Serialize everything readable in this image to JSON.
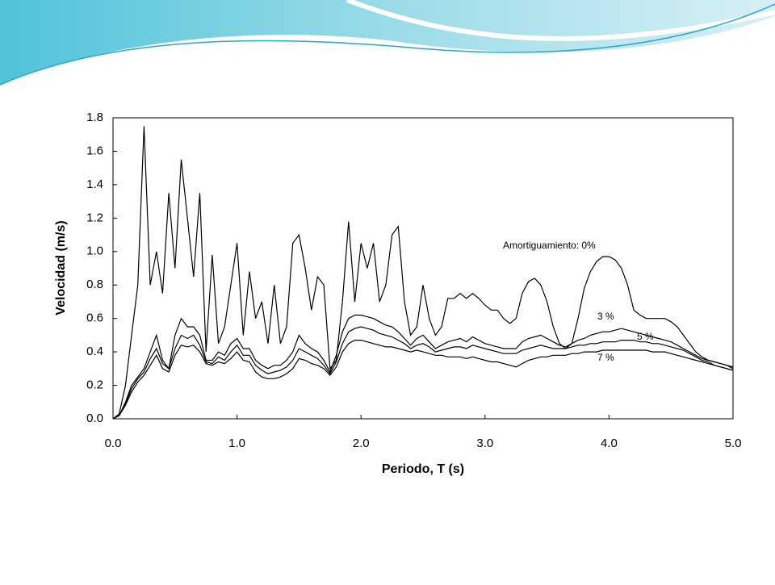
{
  "chart_data": {
    "type": "line",
    "xlabel": "Periodo, T (s)",
    "ylabel": "Velocidad (m/s)",
    "xlim": [
      0,
      5
    ],
    "ylim": [
      0,
      1.8
    ],
    "xticks": [
      {
        "value": 0,
        "label": "0.0"
      },
      {
        "value": 1,
        "label": "1.0"
      },
      {
        "value": 2,
        "label": "2.0"
      },
      {
        "value": 3,
        "label": "3.0"
      },
      {
        "value": 4,
        "label": "4.0"
      },
      {
        "value": 5,
        "label": "5.0"
      }
    ],
    "yticks": [
      {
        "value": 0,
        "label": "0.0"
      },
      0.2,
      0.4,
      0.6,
      0.8,
      {
        "value": 1,
        "label": "1.0"
      },
      1.2,
      1.4,
      1.6,
      1.8
    ],
    "grid": false,
    "x": [
      0,
      0.05,
      0.1,
      0.15,
      0.2,
      0.25,
      0.3,
      0.35,
      0.4,
      0.45,
      0.5,
      0.55,
      0.6,
      0.65,
      0.7,
      0.75,
      0.8,
      0.85,
      0.9,
      0.95,
      1,
      1.05,
      1.1,
      1.15,
      1.2,
      1.25,
      1.3,
      1.35,
      1.4,
      1.45,
      1.5,
      1.55,
      1.6,
      1.65,
      1.7,
      1.75,
      1.8,
      1.85,
      1.9,
      1.95,
      2,
      2.05,
      2.1,
      2.15,
      2.2,
      2.25,
      2.3,
      2.35,
      2.4,
      2.45,
      2.5,
      2.55,
      2.6,
      2.65,
      2.7,
      2.75,
      2.8,
      2.85,
      2.9,
      2.95,
      3,
      3.05,
      3.1,
      3.15,
      3.2,
      3.25,
      3.3,
      3.35,
      3.4,
      3.45,
      3.5,
      3.55,
      3.6,
      3.65,
      3.7,
      3.75,
      3.8,
      3.85,
      3.9,
      3.95,
      4,
      4.05,
      4.1,
      4.15,
      4.2,
      4.25,
      4.3,
      4.35,
      4.4,
      4.45,
      4.5,
      4.55,
      4.6,
      4.65,
      4.7,
      4.75,
      4.8,
      4.85,
      4.9,
      4.95,
      5
    ],
    "series": [
      {
        "name": "Amortiguamiento: 0%",
        "color": "#000000",
        "values": [
          0,
          0.03,
          0.2,
          0.5,
          0.8,
          1.75,
          0.8,
          1.0,
          0.75,
          1.35,
          0.9,
          1.55,
          1.2,
          0.85,
          1.35,
          0.4,
          0.98,
          0.45,
          0.55,
          0.8,
          1.05,
          0.5,
          0.88,
          0.6,
          0.7,
          0.45,
          0.8,
          0.45,
          0.55,
          1.05,
          1.1,
          0.9,
          0.65,
          0.85,
          0.8,
          0.3,
          0.35,
          0.7,
          1.18,
          0.7,
          1.05,
          0.9,
          1.05,
          0.7,
          0.8,
          1.1,
          1.15,
          0.7,
          0.5,
          0.55,
          0.8,
          0.6,
          0.5,
          0.55,
          0.72,
          0.72,
          0.75,
          0.72,
          0.75,
          0.72,
          0.68,
          0.65,
          0.65,
          0.6,
          0.57,
          0.6,
          0.75,
          0.82,
          0.84,
          0.8,
          0.7,
          0.55,
          0.45,
          0.42,
          0.45,
          0.6,
          0.78,
          0.88,
          0.94,
          0.97,
          0.97,
          0.95,
          0.9,
          0.8,
          0.65,
          0.62,
          0.6,
          0.6,
          0.6,
          0.6,
          0.58,
          0.55,
          0.5,
          0.45,
          0.4,
          0.37,
          0.35,
          0.34,
          0.33,
          0.32,
          0.31
        ]
      },
      {
        "name": "3 %",
        "color": "#000000",
        "values": [
          0,
          0.02,
          0.1,
          0.2,
          0.25,
          0.3,
          0.4,
          0.5,
          0.35,
          0.3,
          0.5,
          0.6,
          0.55,
          0.55,
          0.5,
          0.35,
          0.35,
          0.4,
          0.38,
          0.45,
          0.48,
          0.42,
          0.42,
          0.35,
          0.32,
          0.3,
          0.32,
          0.32,
          0.35,
          0.4,
          0.5,
          0.45,
          0.42,
          0.4,
          0.35,
          0.28,
          0.38,
          0.52,
          0.6,
          0.62,
          0.62,
          0.61,
          0.6,
          0.58,
          0.56,
          0.55,
          0.52,
          0.48,
          0.44,
          0.48,
          0.5,
          0.46,
          0.42,
          0.44,
          0.46,
          0.47,
          0.48,
          0.46,
          0.49,
          0.47,
          0.45,
          0.44,
          0.43,
          0.42,
          0.42,
          0.42,
          0.46,
          0.48,
          0.49,
          0.5,
          0.48,
          0.46,
          0.44,
          0.43,
          0.45,
          0.47,
          0.48,
          0.5,
          0.51,
          0.52,
          0.52,
          0.53,
          0.54,
          0.53,
          0.52,
          0.51,
          0.5,
          0.49,
          0.48,
          0.47,
          0.46,
          0.44,
          0.42,
          0.4,
          0.38,
          0.36,
          0.35,
          0.34,
          0.33,
          0.32,
          0.3
        ]
      },
      {
        "name": "5 %",
        "color": "#000000",
        "values": [
          0,
          0.02,
          0.09,
          0.18,
          0.24,
          0.28,
          0.36,
          0.42,
          0.33,
          0.3,
          0.42,
          0.5,
          0.48,
          0.5,
          0.44,
          0.34,
          0.33,
          0.37,
          0.35,
          0.4,
          0.44,
          0.38,
          0.38,
          0.32,
          0.29,
          0.27,
          0.28,
          0.29,
          0.31,
          0.35,
          0.42,
          0.4,
          0.38,
          0.36,
          0.32,
          0.27,
          0.34,
          0.45,
          0.52,
          0.54,
          0.55,
          0.54,
          0.53,
          0.51,
          0.5,
          0.49,
          0.47,
          0.45,
          0.42,
          0.44,
          0.45,
          0.43,
          0.4,
          0.41,
          0.42,
          0.43,
          0.43,
          0.42,
          0.44,
          0.43,
          0.42,
          0.41,
          0.4,
          0.39,
          0.39,
          0.39,
          0.41,
          0.42,
          0.43,
          0.44,
          0.43,
          0.42,
          0.42,
          0.42,
          0.43,
          0.44,
          0.44,
          0.45,
          0.45,
          0.46,
          0.46,
          0.46,
          0.47,
          0.47,
          0.47,
          0.46,
          0.46,
          0.45,
          0.45,
          0.44,
          0.43,
          0.42,
          0.41,
          0.39,
          0.37,
          0.35,
          0.34,
          0.32,
          0.31,
          0.3,
          0.29
        ]
      },
      {
        "name": "7 %",
        "color": "#000000",
        "values": [
          0,
          0.02,
          0.08,
          0.16,
          0.22,
          0.26,
          0.32,
          0.38,
          0.3,
          0.28,
          0.38,
          0.44,
          0.43,
          0.44,
          0.4,
          0.33,
          0.32,
          0.34,
          0.33,
          0.36,
          0.4,
          0.35,
          0.34,
          0.28,
          0.25,
          0.24,
          0.24,
          0.25,
          0.27,
          0.3,
          0.36,
          0.35,
          0.33,
          0.32,
          0.3,
          0.26,
          0.31,
          0.4,
          0.45,
          0.47,
          0.47,
          0.46,
          0.45,
          0.44,
          0.43,
          0.43,
          0.42,
          0.41,
          0.4,
          0.41,
          0.4,
          0.39,
          0.38,
          0.38,
          0.37,
          0.37,
          0.37,
          0.36,
          0.37,
          0.36,
          0.35,
          0.34,
          0.34,
          0.33,
          0.32,
          0.31,
          0.33,
          0.35,
          0.36,
          0.37,
          0.37,
          0.38,
          0.38,
          0.38,
          0.39,
          0.39,
          0.4,
          0.4,
          0.4,
          0.41,
          0.41,
          0.41,
          0.41,
          0.41,
          0.41,
          0.41,
          0.41,
          0.4,
          0.4,
          0.4,
          0.39,
          0.38,
          0.37,
          0.36,
          0.35,
          0.34,
          0.33,
          0.32,
          0.31,
          0.3,
          0.29
        ]
      }
    ]
  }
}
